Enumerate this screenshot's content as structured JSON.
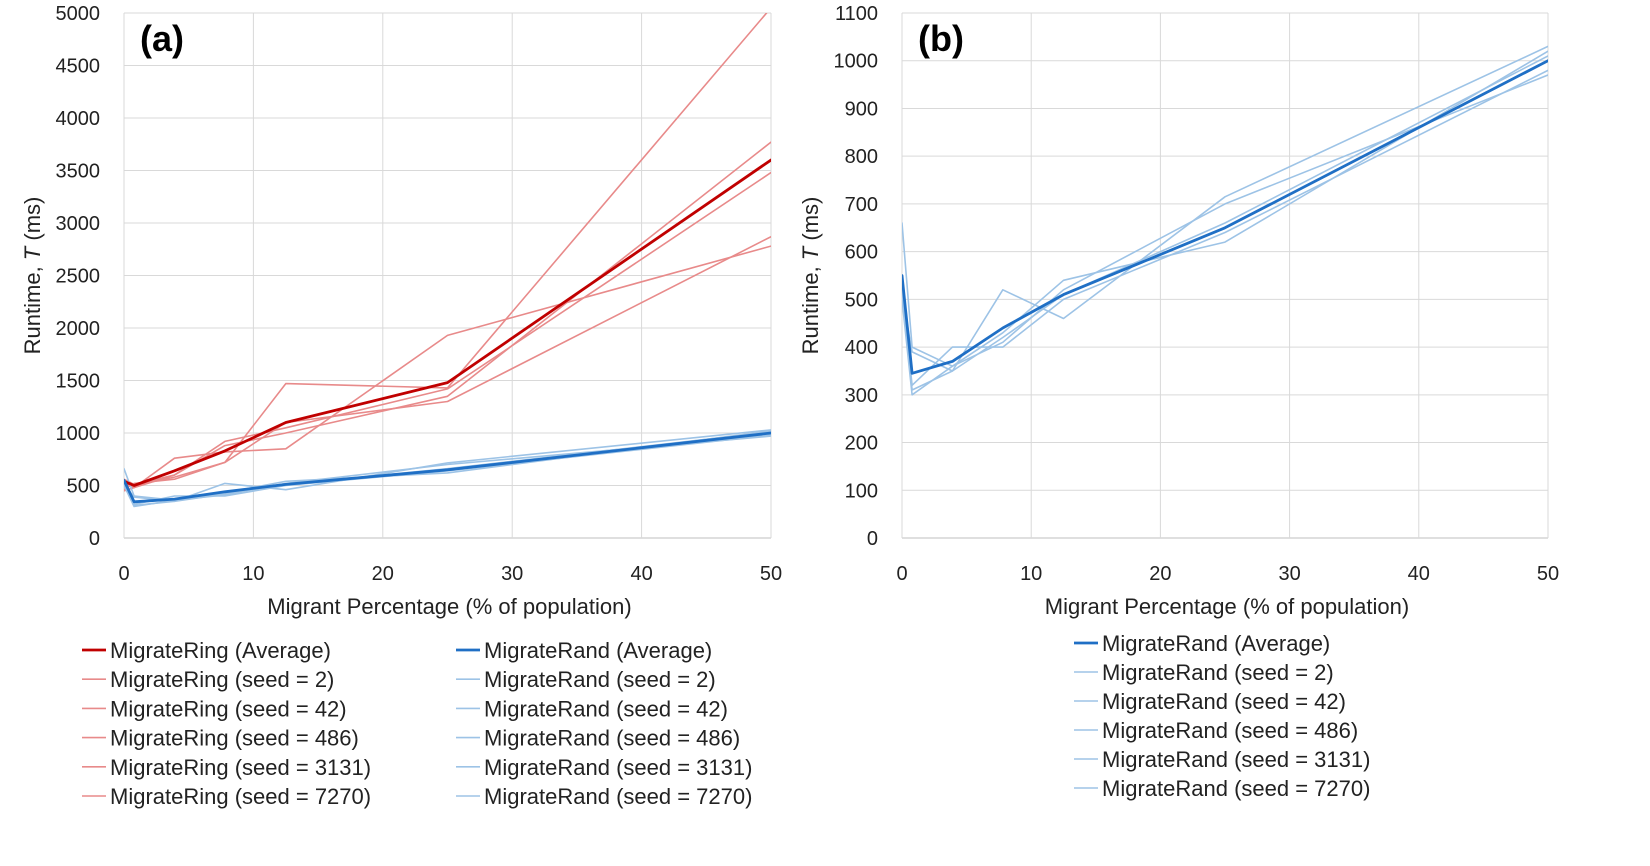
{
  "chart_data": [
    {
      "type": "line",
      "panel_label": "(a)",
      "xlabel": "Migrant Percentage (% of population)",
      "ylabel_main": "Runtime, ",
      "ylabel_var": "T",
      "ylabel_unit": " (ms)",
      "xlim": [
        0,
        50
      ],
      "ylim": [
        0,
        5000
      ],
      "xticks": [
        0,
        10,
        20,
        30,
        40,
        50
      ],
      "yticks": [
        0,
        500,
        1000,
        1500,
        2000,
        2500,
        3000,
        3500,
        4000,
        4500,
        5000
      ],
      "grid": true,
      "legend_position": "bottom",
      "legend_columns": 2,
      "x": [
        0,
        0.78,
        3.9,
        7.8,
        12.5,
        25,
        50
      ],
      "series": [
        {
          "name": "MigrateRing (Average)",
          "color": "#c00000",
          "width": 2.8,
          "values": [
            540,
            500,
            640,
            830,
            1100,
            1480,
            3600
          ]
        },
        {
          "name": "MigrateRing (seed = 2)",
          "color": "#e88a8a",
          "width": 1.6,
          "values": [
            450,
            480,
            760,
            820,
            850,
            1930,
            2780
          ]
        },
        {
          "name": "MigrateRing (seed = 42)",
          "color": "#e88a8a",
          "width": 1.6,
          "values": [
            520,
            500,
            580,
            720,
            1100,
            1300,
            2870
          ]
        },
        {
          "name": "MigrateRing (seed = 486)",
          "color": "#e88a8a",
          "width": 1.6,
          "values": [
            560,
            510,
            600,
            920,
            1050,
            1420,
            3480
          ]
        },
        {
          "name": "MigrateRing (seed = 3131)",
          "color": "#e88a8a",
          "width": 1.6,
          "values": [
            520,
            480,
            600,
            880,
            1000,
            1350,
            3770
          ]
        },
        {
          "name": "MigrateRing (seed = 7270)",
          "color": "#e88a8a",
          "width": 1.6,
          "values": [
            460,
            520,
            560,
            720,
            1470,
            1430,
            5050
          ]
        },
        {
          "name": "MigrateRand (Average)",
          "color": "#1f6fc5",
          "width": 2.8,
          "values": [
            550,
            345,
            370,
            440,
            510,
            650,
            1000
          ]
        },
        {
          "name": "MigrateRand (seed = 2)",
          "color": "#9dc3e6",
          "width": 1.6,
          "values": [
            660,
            400,
            360,
            430,
            540,
            620,
            1020
          ]
        },
        {
          "name": "MigrateRand (seed = 42)",
          "color": "#9dc3e6",
          "width": 1.6,
          "values": [
            500,
            300,
            360,
            410,
            520,
            700,
            970
          ]
        },
        {
          "name": "MigrateRand (seed = 486)",
          "color": "#9dc3e6",
          "width": 1.6,
          "values": [
            520,
            310,
            350,
            420,
            510,
            660,
            1010
          ]
        },
        {
          "name": "MigrateRand (seed = 3131)",
          "color": "#9dc3e6",
          "width": 1.6,
          "values": [
            520,
            320,
            400,
            400,
            500,
            640,
            980
          ]
        },
        {
          "name": "MigrateRand (seed = 7270)",
          "color": "#9dc3e6",
          "width": 1.6,
          "values": [
            510,
            390,
            350,
            520,
            460,
            715,
            1030
          ]
        }
      ]
    },
    {
      "type": "line",
      "panel_label": "(b)",
      "xlabel": "Migrant Percentage (% of population)",
      "ylabel_main": "Runtime, ",
      "ylabel_var": "T",
      "ylabel_unit": " (ms)",
      "xlim": [
        0,
        50
      ],
      "ylim": [
        0,
        1100
      ],
      "xticks": [
        0,
        10,
        20,
        30,
        40,
        50
      ],
      "yticks": [
        0,
        100,
        200,
        300,
        400,
        500,
        600,
        700,
        800,
        900,
        1000,
        1100
      ],
      "grid": true,
      "legend_position": "bottom",
      "legend_columns": 1,
      "x": [
        0,
        0.78,
        3.9,
        7.8,
        12.5,
        25,
        50
      ],
      "series": [
        {
          "name": "MigrateRand (Average)",
          "color": "#1f6fc5",
          "width": 2.8,
          "values": [
            550,
            345,
            370,
            440,
            510,
            650,
            1000
          ]
        },
        {
          "name": "MigrateRand (seed = 2)",
          "color": "#9dc3e6",
          "width": 1.6,
          "values": [
            660,
            400,
            360,
            430,
            540,
            620,
            1020
          ]
        },
        {
          "name": "MigrateRand (seed = 42)",
          "color": "#9dc3e6",
          "width": 1.6,
          "values": [
            500,
            300,
            360,
            410,
            520,
            700,
            970
          ]
        },
        {
          "name": "MigrateRand (seed = 486)",
          "color": "#9dc3e6",
          "width": 1.6,
          "values": [
            520,
            310,
            350,
            420,
            510,
            660,
            1010
          ]
        },
        {
          "name": "MigrateRand (seed = 3131)",
          "color": "#9dc3e6",
          "width": 1.6,
          "values": [
            520,
            320,
            400,
            400,
            500,
            640,
            980
          ]
        },
        {
          "name": "MigrateRand (seed = 7270)",
          "color": "#9dc3e6",
          "width": 1.6,
          "values": [
            510,
            390,
            350,
            520,
            460,
            715,
            1030
          ]
        }
      ]
    }
  ]
}
